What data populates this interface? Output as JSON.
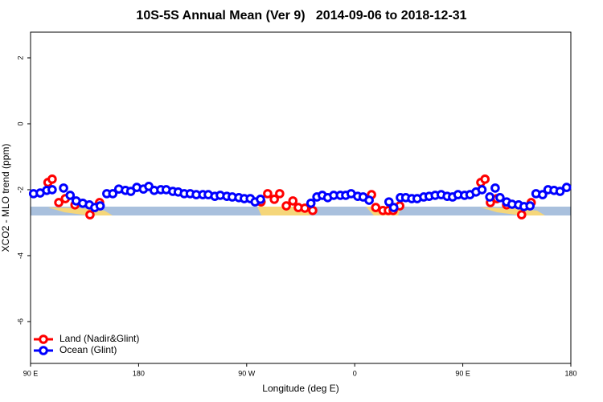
{
  "chart_data": {
    "type": "scatter",
    "title": "10S-5S Annual Mean (Ver 9)   2014-09-06 to 2018-12-31",
    "xlabel": "Longitude (deg E)",
    "ylabel": "XCO2 - MLO trend (ppm)",
    "xlim": [
      90,
      540
    ],
    "xticks": [
      {
        "value": 90,
        "label": "90 E"
      },
      180,
      {
        "value": 270,
        "label": "90 W"
      },
      {
        "value": 360,
        "label": "0"
      },
      {
        "value": 450,
        "label": "90 E"
      },
      {
        "value": 540,
        "label": "180"
      }
    ],
    "ylim": [
      -7.27,
      2.78
    ],
    "yticks": [
      -6,
      -4,
      -2,
      0,
      2
    ],
    "legend": "bottom-left",
    "series": [
      {
        "name": "Land (Nadir&Glint)",
        "color": "#ff0000",
        "x": [
          104.5,
          108,
          113.5,
          119,
          127,
          139.5,
          147.5,
          282,
          287.5,
          293,
          297.5,
          303,
          308.5,
          313,
          318.5,
          325,
          374,
          377.5,
          383.5,
          388,
          392,
          397.5,
          465,
          468.5,
          473,
          478.5,
          486.5,
          499,
          507
        ],
        "values": [
          -1.78,
          -1.68,
          -2.39,
          -2.27,
          -2.46,
          -2.76,
          -2.39,
          -2.37,
          -2.12,
          -2.29,
          -2.12,
          -2.49,
          -2.34,
          -2.54,
          -2.56,
          -2.63,
          -2.15,
          -2.54,
          -2.63,
          -2.63,
          -2.63,
          -2.49,
          -1.78,
          -1.68,
          -2.39,
          -2.27,
          -2.46,
          -2.76,
          -2.39
        ]
      },
      {
        "name": "Ocean (Glint)",
        "color": "#0000ff",
        "x": [
          92.5,
          98,
          103.5,
          108,
          117.5,
          123,
          128,
          133.5,
          139,
          143.5,
          148,
          153.5,
          158.5,
          163.5,
          169,
          173.5,
          178.5,
          184,
          188.5,
          193,
          198.5,
          203,
          208.5,
          213,
          218,
          223,
          228,
          233.5,
          238,
          243.5,
          248,
          253.5,
          258,
          263.5,
          268,
          273,
          277,
          281.5,
          323.5,
          328.5,
          333,
          337.5,
          342.5,
          348,
          352.5,
          357,
          362.5,
          367,
          372,
          388.5,
          392.5,
          398,
          402.5,
          407.5,
          412,
          417.5,
          422,
          427,
          432,
          437,
          441.5,
          446,
          451.5,
          456,
          461,
          466,
          472.5,
          477,
          481,
          486.5,
          491,
          496.5,
          501,
          506,
          511,
          516.5,
          521,
          526,
          531,
          536.5
        ],
        "values": [
          -2.12,
          -2.1,
          -2.02,
          -2.0,
          -1.95,
          -2.17,
          -2.34,
          -2.41,
          -2.46,
          -2.54,
          -2.49,
          -2.12,
          -2.12,
          -1.98,
          -2.02,
          -2.05,
          -1.93,
          -1.98,
          -1.9,
          -2.02,
          -2.0,
          -2.0,
          -2.05,
          -2.07,
          -2.12,
          -2.12,
          -2.15,
          -2.15,
          -2.15,
          -2.2,
          -2.17,
          -2.2,
          -2.22,
          -2.24,
          -2.27,
          -2.27,
          -2.37,
          -2.29,
          -2.41,
          -2.22,
          -2.17,
          -2.24,
          -2.17,
          -2.17,
          -2.17,
          -2.12,
          -2.2,
          -2.22,
          -2.32,
          -2.37,
          -2.54,
          -2.24,
          -2.24,
          -2.27,
          -2.27,
          -2.22,
          -2.2,
          -2.17,
          -2.15,
          -2.2,
          -2.22,
          -2.15,
          -2.17,
          -2.15,
          -2.07,
          -2.0,
          -2.22,
          -1.95,
          -2.24,
          -2.37,
          -2.44,
          -2.46,
          -2.51,
          -2.49,
          -2.12,
          -2.15,
          -2.0,
          -2.02,
          -2.05,
          -1.93
        ]
      }
    ]
  }
}
